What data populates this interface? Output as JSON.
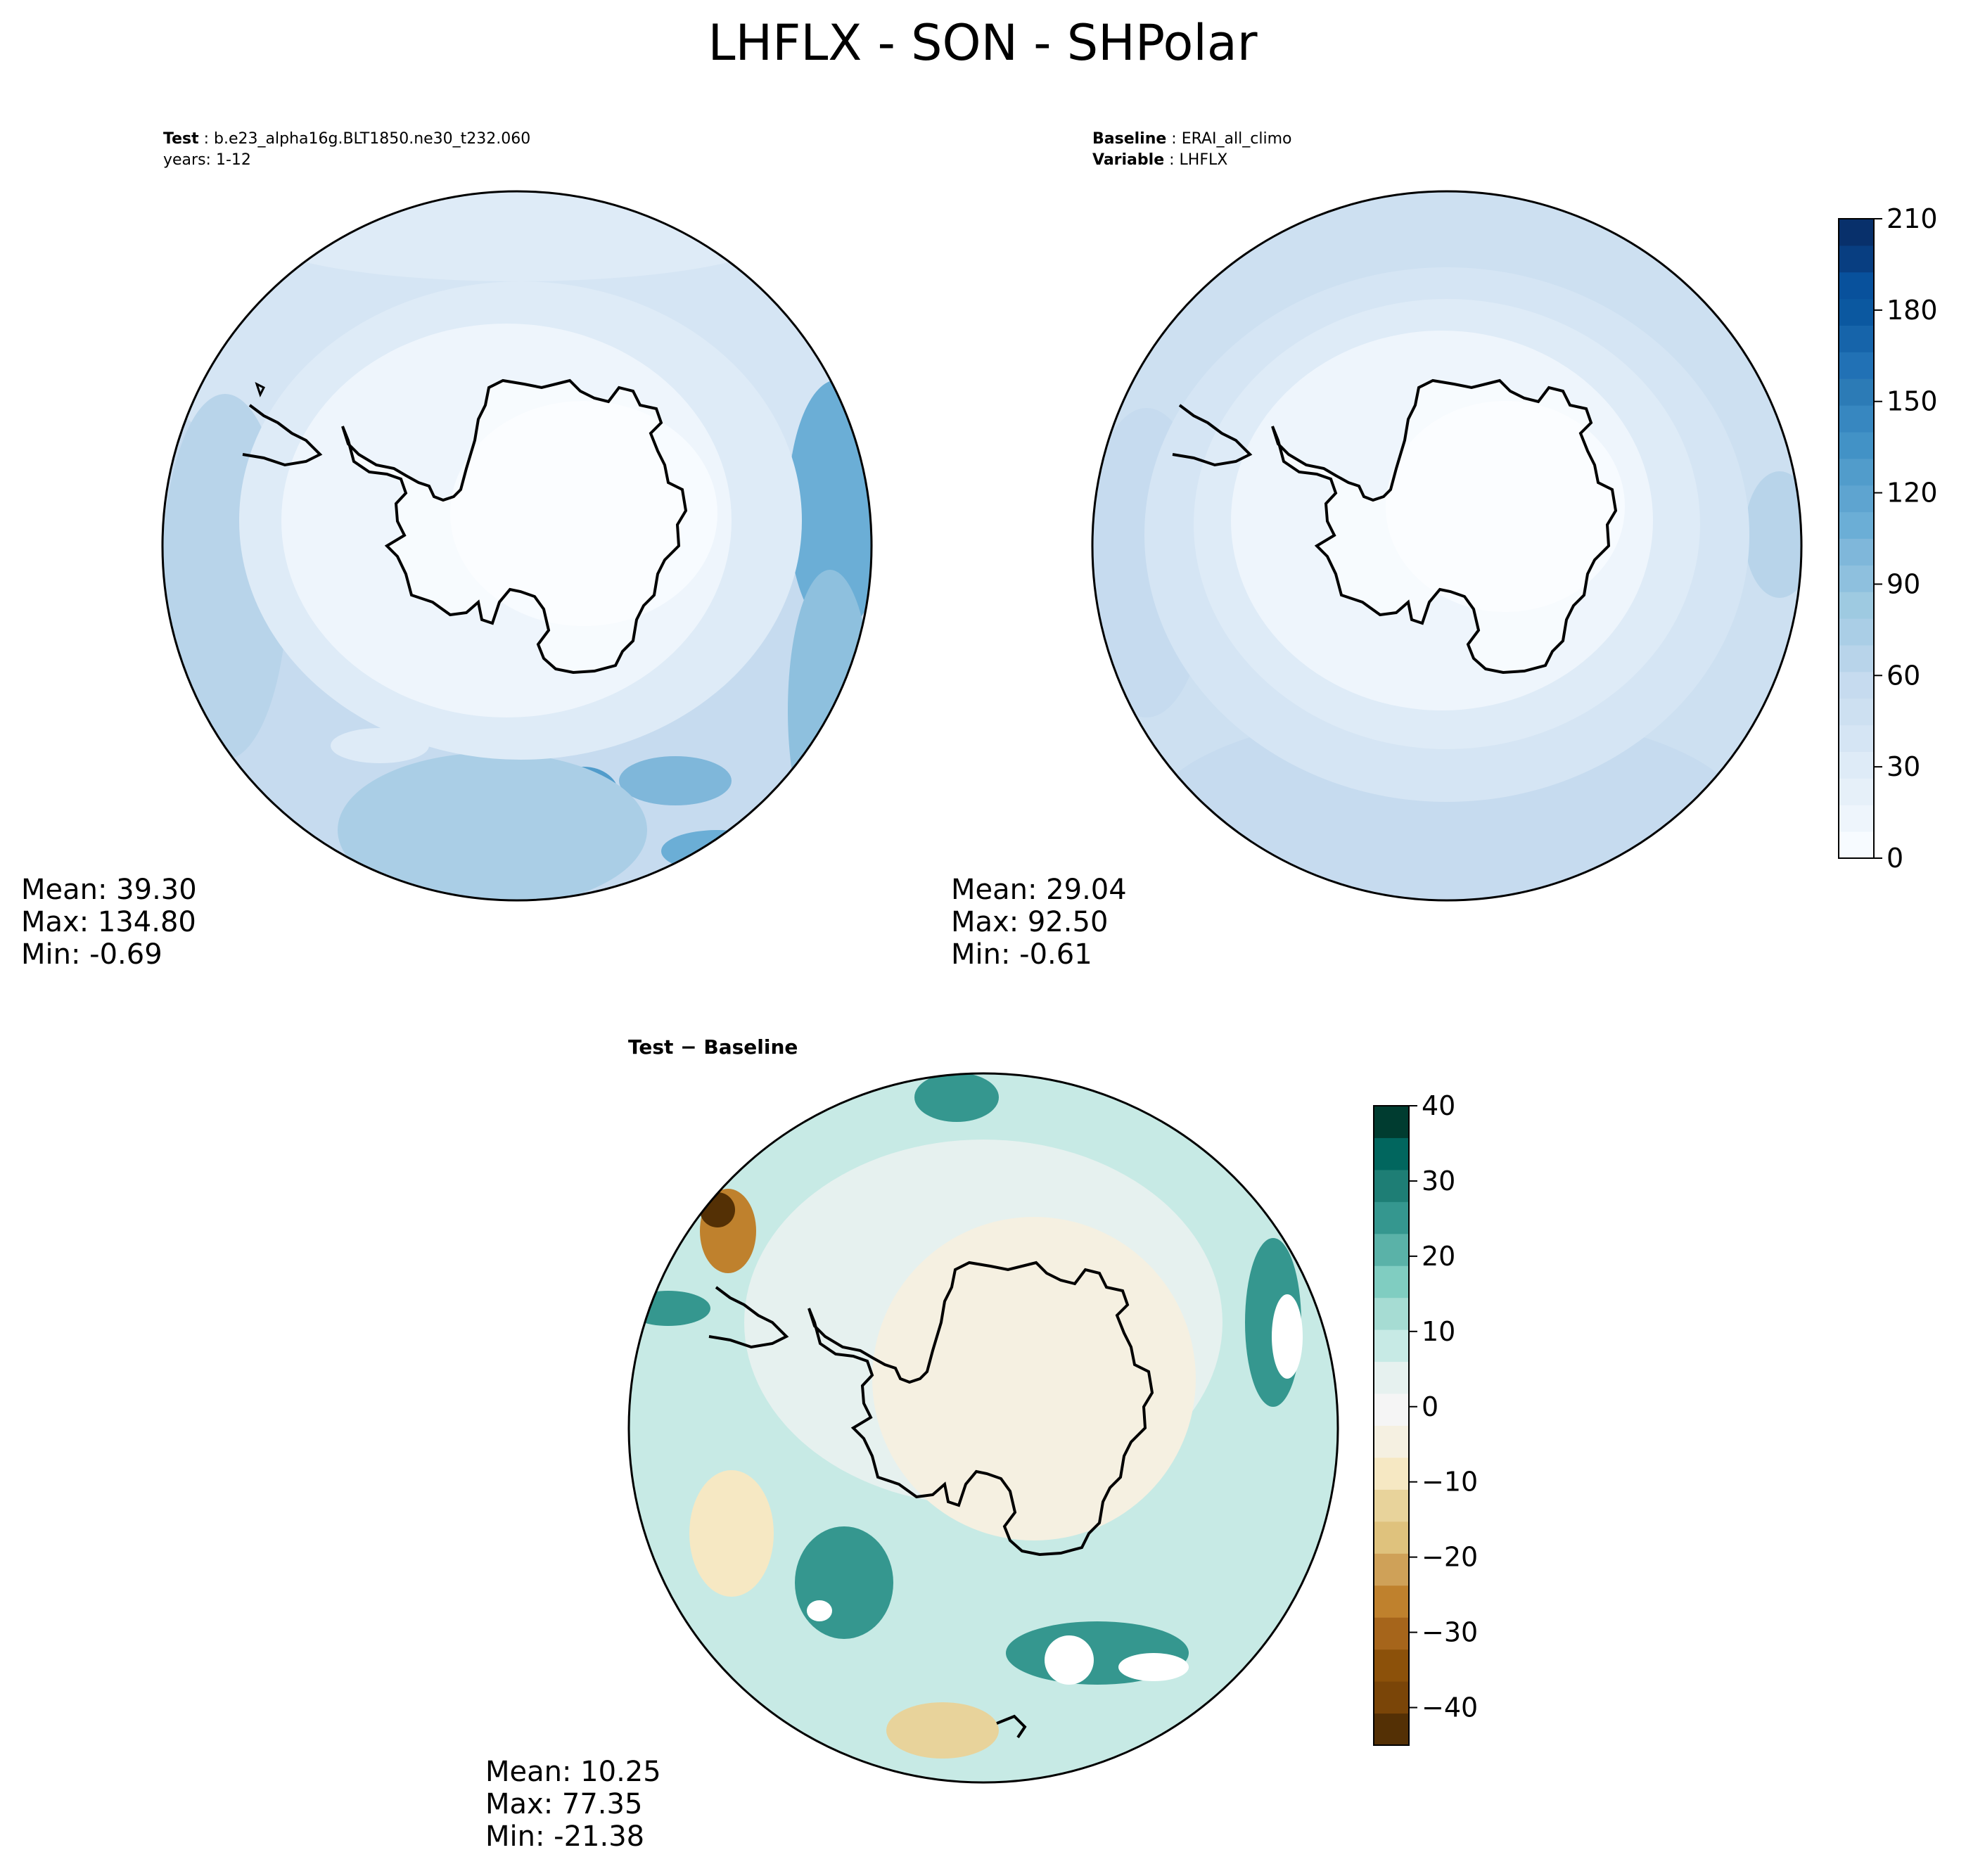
{
  "figure": {
    "title": "LHFLX - SON - SHPolar"
  },
  "panels": {
    "test": {
      "label_bold": "Test",
      "label_value": "b.e23_alpha16g.BLT1850.ne30_t232.060",
      "years": "years: 1-12",
      "stats": {
        "mean": "Mean: 39.30",
        "max": "Max: 134.80",
        "min": "Min: -0.69"
      }
    },
    "baseline": {
      "label_bold": "Baseline",
      "label_value": "ERAI_all_climo",
      "variable_bold": "Variable",
      "variable_value": "LHFLX",
      "stats": {
        "mean": "Mean: 29.04",
        "max": "Max: 92.50",
        "min": "Min: -0.61"
      }
    },
    "diff": {
      "label": "Test − Baseline",
      "stats": {
        "mean": "Mean: 10.25",
        "max": "Max: 77.35",
        "min": "Min: -21.38"
      }
    }
  },
  "colorbars": {
    "abs": {
      "colors": [
        "#f7fbff",
        "#eef5fc",
        "#e6f0f9",
        "#deebf7",
        "#d5e5f4",
        "#cde0f1",
        "#c6dbef",
        "#b8d4ea",
        "#aacee6",
        "#9ecae1",
        "#8ec0de",
        "#7fb7da",
        "#6baed6",
        "#5ea4d0",
        "#519ccb",
        "#4292c6",
        "#3787c0",
        "#2c7bb6",
        "#2171b5",
        "#1664aa",
        "#0b58a0",
        "#08519c",
        "#083e81",
        "#08306b"
      ],
      "min": 0,
      "max": 210,
      "ticks": [
        "0",
        "30",
        "60",
        "90",
        "120",
        "150",
        "180",
        "210"
      ]
    },
    "diff": {
      "colors": [
        "#543005",
        "#7a4508",
        "#8c510a",
        "#a6651b",
        "#bf812d",
        "#cfa158",
        "#dfc27d",
        "#e8d39b",
        "#f6e8c3",
        "#f5f0e1",
        "#f5f5f5",
        "#e6f1ef",
        "#c7eae5",
        "#a6dcd3",
        "#80cdc1",
        "#5ab2a8",
        "#35978f",
        "#1e7e75",
        "#01665e",
        "#003c30"
      ],
      "min": -45,
      "max": 40,
      "ticks": [
        "40",
        "30",
        "20",
        "10",
        "0",
        "−10",
        "−20",
        "−30",
        "−40"
      ],
      "tick_values": [
        40,
        30,
        20,
        10,
        0,
        -10,
        -20,
        -30,
        -40
      ]
    }
  },
  "map_colors": {
    "test_bg": "#c6dbef",
    "base_bg": "#d5e5f4",
    "diff_bg": "#c7eae5"
  }
}
